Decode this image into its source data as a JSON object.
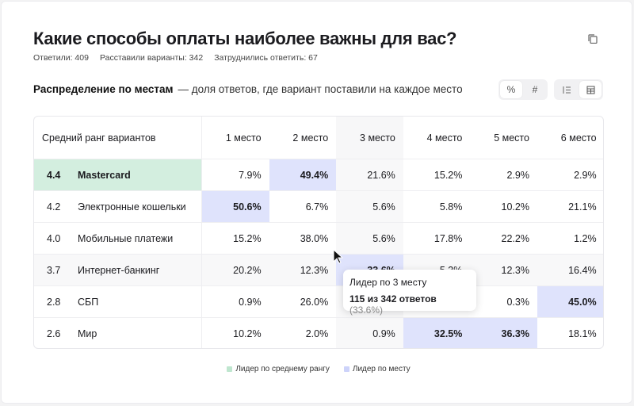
{
  "header": {
    "title": "Какие способы оплаты наиболее важны для вас?",
    "stats": [
      "Ответили: 409",
      "Расставили варианты: 342",
      "Затруднились ответить: 67"
    ]
  },
  "section": {
    "title": "Распределение по местам",
    "description": "— доля ответов, где вариант поставили на каждое место"
  },
  "toggles": {
    "percent": "%",
    "count": "#"
  },
  "table": {
    "header": [
      "Средний ранг вариантов",
      "1 место",
      "2 место",
      "3 место",
      "4 место",
      "5 место",
      "6 место"
    ],
    "rows": [
      {
        "rank": "4.4",
        "name": "Mastercard",
        "leader": true,
        "values": [
          "7.9%",
          "49.4%",
          "21.6%",
          "15.2%",
          "2.9%",
          "2.9%"
        ],
        "lead_cols": [
          1
        ]
      },
      {
        "rank": "4.2",
        "name": "Электронные кошельки",
        "leader": false,
        "values": [
          "50.6%",
          "6.7%",
          "5.6%",
          "5.8%",
          "10.2%",
          "21.1%"
        ],
        "lead_cols": [
          0
        ]
      },
      {
        "rank": "4.0",
        "name": "Мобильные платежи",
        "leader": false,
        "values": [
          "15.2%",
          "38.0%",
          "5.6%",
          "17.8%",
          "22.2%",
          "1.2%"
        ],
        "lead_cols": []
      },
      {
        "rank": "3.7",
        "name": "Интернет-банкинг",
        "leader": false,
        "values": [
          "20.2%",
          "12.3%",
          "33.6%",
          "5.3%",
          "12.3%",
          "16.4%"
        ],
        "lead_cols": [
          2
        ]
      },
      {
        "rank": "2.8",
        "name": "СБП",
        "leader": false,
        "values": [
          "0.9%",
          "26.0%",
          "",
          "",
          "0.3%",
          "45.0%"
        ],
        "lead_cols": [
          5
        ]
      },
      {
        "rank": "2.6",
        "name": "Мир",
        "leader": false,
        "values": [
          "10.2%",
          "2.0%",
          "0.9%",
          "32.5%",
          "36.3%",
          "18.1%"
        ],
        "lead_cols": [
          3,
          4
        ]
      }
    ]
  },
  "tooltip": {
    "title": "Лидер по 3 месту",
    "count": "115 из 342 ответов",
    "percent": "(33.6%)"
  },
  "legend": {
    "rank_leader": "Лидер по среднему рангу",
    "place_leader": "Лидер по месту"
  },
  "colors": {
    "rank_leader": "#d3eedf",
    "place_leader": "#dfe3fc"
  }
}
